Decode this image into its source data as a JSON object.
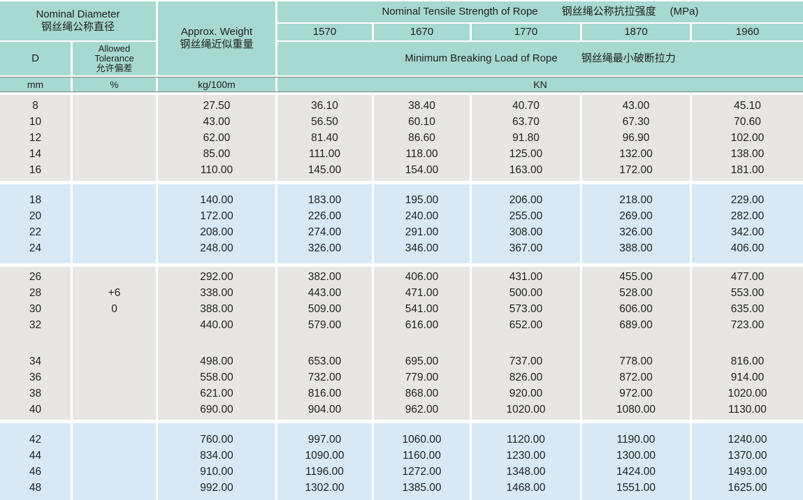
{
  "header": {
    "nominal_diameter": {
      "en": "Nominal Diameter",
      "zh": "钢丝绳公称直径"
    },
    "d_label": "D",
    "allowed_tolerance": {
      "en_line1": "Allowed",
      "en_line2": "Tolerance",
      "zh": "允许偏差"
    },
    "approx_weight": {
      "en": "Approx. Weight",
      "zh": "钢丝绳近似重量"
    },
    "tensile_strength": {
      "en": "Nominal Tensile Strength of Rope",
      "zh": "钢丝绳公称抗拉强度",
      "unit": "(MPa)"
    },
    "grades": [
      "1570",
      "1670",
      "1770",
      "1870",
      "1960"
    ],
    "breaking_load": {
      "en": "Minimum Breaking Load of Rope",
      "zh": "钢丝绳最小破断拉力"
    },
    "units": {
      "diameter": "mm",
      "tolerance": "%",
      "weight": "kg/100m",
      "load": "KN"
    }
  },
  "body": {
    "groups": [
      {
        "tone": "gray",
        "rows": [
          {
            "d": "8",
            "tol": "",
            "weight": "27.50",
            "loads": [
              "36.10",
              "38.40",
              "40.70",
              "43.00",
              "45.10"
            ]
          },
          {
            "d": "10",
            "tol": "",
            "weight": "43.00",
            "loads": [
              "56.50",
              "60.10",
              "63.70",
              "67.30",
              "70.60"
            ]
          },
          {
            "d": "12",
            "tol": "",
            "weight": "62.00",
            "loads": [
              "81.40",
              "86.60",
              "91.80",
              "96.90",
              "102.00"
            ]
          },
          {
            "d": "14",
            "tol": "",
            "weight": "85.00",
            "loads": [
              "111.00",
              "118.00",
              "125.00",
              "132.00",
              "138.00"
            ]
          },
          {
            "d": "16",
            "tol": "",
            "weight": "110.00",
            "loads": [
              "145.00",
              "154.00",
              "163.00",
              "172.00",
              "181.00"
            ]
          }
        ]
      },
      {
        "tone": "blue",
        "rows": [
          {
            "d": "18",
            "tol": "",
            "weight": "140.00",
            "loads": [
              "183.00",
              "195.00",
              "206.00",
              "218.00",
              "229.00"
            ]
          },
          {
            "d": "20",
            "tol": "",
            "weight": "172.00",
            "loads": [
              "226.00",
              "240.00",
              "255.00",
              "269.00",
              "282.00"
            ]
          },
          {
            "d": "22",
            "tol": "",
            "weight": "208.00",
            "loads": [
              "274.00",
              "291.00",
              "308.00",
              "326.00",
              "342.00"
            ]
          },
          {
            "d": "24",
            "tol": "",
            "weight": "248.00",
            "loads": [
              "326.00",
              "346.00",
              "367.00",
              "388.00",
              "406.00"
            ]
          }
        ]
      },
      {
        "tone": "gray",
        "spacer_after": "32",
        "rows": [
          {
            "d": "26",
            "tol": "",
            "weight": "292.00",
            "loads": [
              "382.00",
              "406.00",
              "431.00",
              "455.00",
              "477.00"
            ]
          },
          {
            "d": "28",
            "tol": "+6",
            "weight": "338.00",
            "loads": [
              "443.00",
              "471.00",
              "500.00",
              "528.00",
              "553.00"
            ]
          },
          {
            "d": "30",
            "tol": "0",
            "weight": "388.00",
            "loads": [
              "509.00",
              "541.00",
              "573.00",
              "606.00",
              "635.00"
            ]
          },
          {
            "d": "32",
            "tol": "",
            "weight": "440.00",
            "loads": [
              "579.00",
              "616.00",
              "652.00",
              "689.00",
              "723.00"
            ]
          },
          {
            "d": "34",
            "tol": "",
            "weight": "498.00",
            "loads": [
              "653.00",
              "695.00",
              "737.00",
              "778.00",
              "816.00"
            ]
          },
          {
            "d": "36",
            "tol": "",
            "weight": "558.00",
            "loads": [
              "732.00",
              "779.00",
              "826.00",
              "872.00",
              "914.00"
            ]
          },
          {
            "d": "38",
            "tol": "",
            "weight": "621.00",
            "loads": [
              "816.00",
              "868.00",
              "920.00",
              "972.00",
              "1020.00"
            ]
          },
          {
            "d": "40",
            "tol": "",
            "weight": "690.00",
            "loads": [
              "904.00",
              "962.00",
              "1020.00",
              "1080.00",
              "1130.00"
            ]
          }
        ]
      },
      {
        "tone": "blue",
        "rows": [
          {
            "d": "42",
            "tol": "",
            "weight": "760.00",
            "loads": [
              "997.00",
              "1060.00",
              "1120.00",
              "1190.00",
              "1240.00"
            ]
          },
          {
            "d": "44",
            "tol": "",
            "weight": "834.00",
            "loads": [
              "1090.00",
              "1160.00",
              "1230.00",
              "1300.00",
              "1370.00"
            ]
          },
          {
            "d": "46",
            "tol": "",
            "weight": "910.00",
            "loads": [
              "1196.00",
              "1272.00",
              "1348.00",
              "1424.00",
              "1493.00"
            ]
          },
          {
            "d": "48",
            "tol": "",
            "weight": "992.00",
            "loads": [
              "1302.00",
              "1385.00",
              "1468.00",
              "1551.00",
              "1625.00"
            ]
          }
        ]
      }
    ]
  },
  "colors": {
    "header_bg": "#a6d9d0",
    "gray_row_bg": "#e7e6e4",
    "blue_row_bg": "#d8e9f5",
    "rule_line": "#7d7d7d",
    "gap": "#ffffff",
    "text": "#1f1f1f"
  }
}
